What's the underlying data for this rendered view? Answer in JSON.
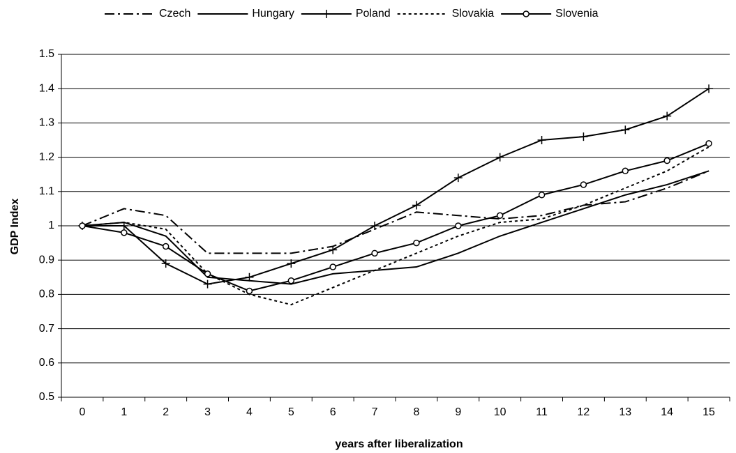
{
  "chart_data": {
    "type": "line",
    "x_label": "years after liberalization",
    "y_label": "GDP Index",
    "categories": [
      "0",
      "1",
      "2",
      "3",
      "4",
      "5",
      "6",
      "7",
      "8",
      "9",
      "10",
      "11",
      "12",
      "13",
      "14",
      "15"
    ],
    "ylim": [
      0.5,
      1.5
    ],
    "yticks": [
      0.5,
      0.6,
      0.7,
      0.8,
      0.9,
      1,
      1.1,
      1.2,
      1.3,
      1.4,
      1.5
    ],
    "grid": true,
    "legend": "top",
    "series": [
      {
        "name": "Czech",
        "color": "#000000",
        "dash": "dash-dot",
        "marker": "none",
        "values": [
          1.0,
          1.05,
          1.03,
          0.92,
          0.92,
          0.92,
          0.94,
          0.99,
          1.04,
          1.03,
          1.02,
          1.03,
          1.06,
          1.07,
          1.11,
          1.16
        ]
      },
      {
        "name": "Hungary",
        "color": "#000000",
        "dash": "solid",
        "marker": "none",
        "values": [
          1.0,
          1.01,
          0.97,
          0.85,
          0.84,
          0.83,
          0.86,
          0.87,
          0.88,
          0.92,
          0.97,
          1.01,
          1.05,
          1.09,
          1.12,
          1.16
        ]
      },
      {
        "name": "Poland",
        "color": "#000000",
        "dash": "solid",
        "marker": "plus",
        "values": [
          1.0,
          1.0,
          0.89,
          0.83,
          0.85,
          0.89,
          0.93,
          1.0,
          1.06,
          1.14,
          1.2,
          1.25,
          1.26,
          1.28,
          1.32,
          1.4
        ]
      },
      {
        "name": "Slovakia",
        "color": "#000000",
        "dash": "dotted",
        "marker": "none",
        "values": [
          1.0,
          1.01,
          0.99,
          0.86,
          0.8,
          0.77,
          0.82,
          0.87,
          0.92,
          0.97,
          1.01,
          1.02,
          1.06,
          1.11,
          1.16,
          1.23
        ]
      },
      {
        "name": "Slovenia",
        "color": "#000000",
        "dash": "solid",
        "marker": "circle",
        "values": [
          1.0,
          0.98,
          0.94,
          0.86,
          0.81,
          0.84,
          0.88,
          0.92,
          0.95,
          1.0,
          1.03,
          1.09,
          1.12,
          1.16,
          1.19,
          1.24
        ]
      }
    ]
  }
}
